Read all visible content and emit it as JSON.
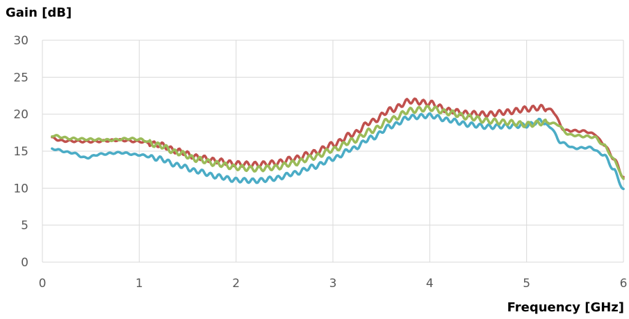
{
  "chart_data": {
    "type": "line",
    "title": "",
    "ylabel": "Gain [dB]",
    "xlabel": "Frequency [GHz]",
    "xlim": [
      0,
      6
    ],
    "ylim": [
      0,
      30
    ],
    "x_ticks": [
      0,
      1,
      2,
      3,
      4,
      5,
      6
    ],
    "y_ticks": [
      0,
      5,
      10,
      15,
      20,
      25,
      30
    ],
    "grid": true,
    "legend": "none",
    "series": [
      {
        "color": "#c0504d",
        "ripple": 0.35,
        "points": [
          [
            0.1,
            16.8
          ],
          [
            0.2,
            16.4
          ],
          [
            0.5,
            16.3
          ],
          [
            0.8,
            16.5
          ],
          [
            1.0,
            16.3
          ],
          [
            1.2,
            15.9
          ],
          [
            1.4,
            15.0
          ],
          [
            1.6,
            14.2
          ],
          [
            1.8,
            13.7
          ],
          [
            2.0,
            13.3
          ],
          [
            2.2,
            13.2
          ],
          [
            2.4,
            13.4
          ],
          [
            2.6,
            14.0
          ],
          [
            2.8,
            14.8
          ],
          [
            3.0,
            15.9
          ],
          [
            3.2,
            17.3
          ],
          [
            3.4,
            19.0
          ],
          [
            3.6,
            20.6
          ],
          [
            3.8,
            21.8
          ],
          [
            4.0,
            21.5
          ],
          [
            4.2,
            20.5
          ],
          [
            4.4,
            20.1
          ],
          [
            4.6,
            20.0
          ],
          [
            4.8,
            20.3
          ],
          [
            5.0,
            20.7
          ],
          [
            5.15,
            20.9
          ],
          [
            5.25,
            20.6
          ],
          [
            5.4,
            17.8
          ],
          [
            5.6,
            17.7
          ],
          [
            5.7,
            17.3
          ],
          [
            5.8,
            15.9
          ],
          [
            5.9,
            14.0
          ],
          [
            6.0,
            11.5
          ]
        ]
      },
      {
        "color": "#4bacc6",
        "ripple": 0.3,
        "points": [
          [
            0.1,
            15.3
          ],
          [
            0.3,
            14.8
          ],
          [
            0.45,
            14.1
          ],
          [
            0.6,
            14.6
          ],
          [
            0.8,
            14.8
          ],
          [
            1.0,
            14.5
          ],
          [
            1.2,
            14.0
          ],
          [
            1.4,
            13.1
          ],
          [
            1.6,
            12.3
          ],
          [
            1.8,
            11.6
          ],
          [
            2.0,
            11.1
          ],
          [
            2.2,
            11.0
          ],
          [
            2.4,
            11.3
          ],
          [
            2.6,
            12.0
          ],
          [
            2.8,
            12.9
          ],
          [
            3.0,
            14.0
          ],
          [
            3.2,
            15.3
          ],
          [
            3.4,
            16.8
          ],
          [
            3.6,
            18.4
          ],
          [
            3.8,
            19.6
          ],
          [
            4.0,
            19.8
          ],
          [
            4.2,
            19.2
          ],
          [
            4.4,
            18.6
          ],
          [
            4.6,
            18.3
          ],
          [
            4.8,
            18.4
          ],
          [
            5.0,
            18.5
          ],
          [
            5.15,
            19.1
          ],
          [
            5.25,
            18.2
          ],
          [
            5.35,
            16.2
          ],
          [
            5.5,
            15.4
          ],
          [
            5.65,
            15.5
          ],
          [
            5.8,
            14.5
          ],
          [
            5.9,
            12.5
          ],
          [
            6.0,
            9.8
          ]
        ]
      },
      {
        "color": "#9bbb59",
        "ripple": 0.35,
        "points": [
          [
            0.1,
            17.1
          ],
          [
            0.3,
            16.7
          ],
          [
            0.5,
            16.6
          ],
          [
            0.7,
            16.5
          ],
          [
            0.9,
            16.7
          ],
          [
            1.0,
            16.6
          ],
          [
            1.2,
            15.8
          ],
          [
            1.4,
            14.8
          ],
          [
            1.6,
            13.9
          ],
          [
            1.8,
            13.3
          ],
          [
            2.0,
            12.8
          ],
          [
            2.2,
            12.6
          ],
          [
            2.4,
            12.8
          ],
          [
            2.6,
            13.4
          ],
          [
            2.8,
            14.2
          ],
          [
            3.0,
            15.2
          ],
          [
            3.2,
            16.4
          ],
          [
            3.4,
            17.8
          ],
          [
            3.6,
            19.3
          ],
          [
            3.8,
            20.5
          ],
          [
            4.0,
            20.8
          ],
          [
            4.2,
            20.2
          ],
          [
            4.4,
            19.6
          ],
          [
            4.6,
            19.1
          ],
          [
            4.8,
            18.9
          ],
          [
            5.0,
            18.6
          ],
          [
            5.2,
            18.9
          ],
          [
            5.3,
            18.7
          ],
          [
            5.45,
            17.2
          ],
          [
            5.6,
            17.0
          ],
          [
            5.7,
            16.9
          ],
          [
            5.8,
            15.8
          ],
          [
            5.9,
            13.9
          ],
          [
            6.0,
            11.3
          ]
        ]
      }
    ]
  }
}
